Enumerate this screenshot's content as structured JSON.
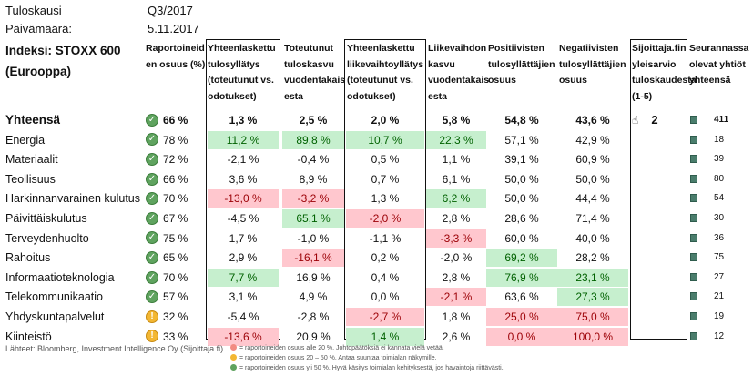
{
  "meta": {
    "period_label": "Tuloskausi",
    "period_value": "Q3/2017",
    "date_label": "Päivämäärä:",
    "date_value": "5.11.2017",
    "index_title": "Indeksi: STOXX 600 (Eurooppa)"
  },
  "headers": {
    "reported": "Raportoineid\nen osuus (%)",
    "eps_surprise": "Yhteenlaskettu\ntulosyllätys\n(toteutunut vs.\nodotukset)",
    "eps_growth": "Toteutunut\ntuloskasvu\nvuodentakais\nesta",
    "rev_surprise": "Yhteenlaskettu\nliikevaihtoyllätys\n(toteutunut vs.\nodotukset)",
    "rev_growth": "Liikevaihdon\nkasvu\nvuodentakais\nesta",
    "positive": "Positiivisten\ntulosyllättäjien\nosuus",
    "negative": "Negatiivisten\ntulosyllättäjien\nosuus",
    "rating": "Sijoittaja.fin\nyleisarvio\ntuloskaudesta\n(1-5)",
    "followed": "Seurannassa\nolevat yhtiöt\nyhteensä"
  },
  "colors": {
    "green_bg": "#c6efce",
    "red_bg": "#ffc7ce",
    "status_ok": "#5fa35f",
    "status_warn": "#f3b733",
    "square": "#4a7d6c"
  },
  "rows": [
    {
      "label": "Yhteensä",
      "status": "ok",
      "reported": "66 %",
      "eps_surprise": "1,3 %",
      "eps_growth": "2,5 %",
      "rev_surprise": "2,0 %",
      "rev_growth": "5,8 %",
      "positive": "54,8 %",
      "negative": "43,6 %",
      "rating": "2",
      "followed": "411"
    },
    {
      "label": "Energia",
      "status": "ok",
      "reported": "78 %",
      "eps_surprise": "11,2 %",
      "eps_growth": "89,8 %",
      "rev_surprise": "10,7 %",
      "rev_growth": "22,3 %",
      "positive": "57,1 %",
      "negative": "42,9 %",
      "followed": "18"
    },
    {
      "label": "Materiaalit",
      "status": "ok",
      "reported": "72 %",
      "eps_surprise": "-2,1 %",
      "eps_growth": "-0,4 %",
      "rev_surprise": "0,5 %",
      "rev_growth": "1,1 %",
      "positive": "39,1 %",
      "negative": "60,9 %",
      "followed": "39"
    },
    {
      "label": "Teollisuus",
      "status": "ok",
      "reported": "66 %",
      "eps_surprise": "3,6 %",
      "eps_growth": "8,9 %",
      "rev_surprise": "0,7 %",
      "rev_growth": "6,1 %",
      "positive": "50,0 %",
      "negative": "50,0 %",
      "followed": "80"
    },
    {
      "label": "Harkinnanvarainen kulutus",
      "status": "ok",
      "reported": "70 %",
      "eps_surprise": "-13,0 %",
      "eps_growth": "-3,2 %",
      "rev_surprise": "1,3 %",
      "rev_growth": "6,2 %",
      "positive": "50,0 %",
      "negative": "44,4 %",
      "followed": "54"
    },
    {
      "label": "Päivittäiskulutus",
      "status": "ok",
      "reported": "67 %",
      "eps_surprise": "-4,5 %",
      "eps_growth": "65,1 %",
      "rev_surprise": "-2,0 %",
      "rev_growth": "2,8 %",
      "positive": "28,6 %",
      "negative": "71,4 %",
      "followed": "30"
    },
    {
      "label": "Terveydenhuolto",
      "status": "ok",
      "reported": "75 %",
      "eps_surprise": "1,7 %",
      "eps_growth": "-1,0 %",
      "rev_surprise": "-1,1 %",
      "rev_growth": "-3,3 %",
      "positive": "60,0 %",
      "negative": "40,0 %",
      "followed": "36"
    },
    {
      "label": "Rahoitus",
      "status": "ok",
      "reported": "65 %",
      "eps_surprise": "2,9 %",
      "eps_growth": "-16,1 %",
      "rev_surprise": "0,2 %",
      "rev_growth": "-2,0 %",
      "positive": "69,2 %",
      "negative": "28,2 %",
      "followed": "75"
    },
    {
      "label": "Informaatioteknologia",
      "status": "ok",
      "reported": "70 %",
      "eps_surprise": "7,7 %",
      "eps_growth": "16,9 %",
      "rev_surprise": "0,4 %",
      "rev_growth": "2,8 %",
      "positive": "76,9 %",
      "negative": "23,1 %",
      "followed": "27"
    },
    {
      "label": "Telekommunikaatio",
      "status": "ok",
      "reported": "57 %",
      "eps_surprise": "3,1 %",
      "eps_growth": "4,9 %",
      "rev_surprise": "0,0 %",
      "rev_growth": "-2,1 %",
      "positive": "63,6 %",
      "negative": "27,3 %",
      "followed": "21"
    },
    {
      "label": "Yhdyskuntapalvelut",
      "status": "warn",
      "reported": "32 %",
      "eps_surprise": "-5,4 %",
      "eps_growth": "-2,8 %",
      "rev_surprise": "-2,7 %",
      "rev_growth": "1,8 %",
      "positive": "25,0 %",
      "negative": "75,0 %",
      "followed": "19"
    },
    {
      "label": "Kiinteistö",
      "status": "warn",
      "reported": "33 %",
      "eps_surprise": "-13,6 %",
      "eps_growth": "20,9 %",
      "rev_surprise": "1,4 %",
      "rev_growth": "2,6 %",
      "positive": "0,0 %",
      "negative": "100,0 %",
      "followed": "12"
    }
  ],
  "highlights": {
    "eps_surprise": {
      "1": "g",
      "4": "r",
      "8": "g",
      "11": "r"
    },
    "eps_growth": {
      "1": "g",
      "4": "r",
      "5": "g",
      "7": "r"
    },
    "rev_surprise": {
      "1": "g",
      "5": "r",
      "10": "r",
      "11": "g"
    },
    "rev_growth": {
      "1": "g",
      "4": "g",
      "6": "r",
      "9": "r"
    },
    "positive": {
      "7": "g",
      "8": "g",
      "10": "r",
      "11": "r"
    },
    "negative": {
      "8": "g",
      "9": "g",
      "10": "r",
      "11": "r"
    }
  },
  "footer": {
    "source": "Lähteet: Bloomberg, Investment Intelligence Oy (Sijoittaja.fi)",
    "legend": [
      {
        "color": "red",
        "text": "= raportoineiden osuus alle 20 %. Johtopäätöksiä ei kannata vielä vetää."
      },
      {
        "color": "orange",
        "text": "= raportoineiden osuus 20 – 50 %. Antaa suuntaa toimialan näkymille."
      },
      {
        "color": "green",
        "text": "= raportoineiden osuus yli 50 %. Hyvä käsitys toimialan kehityksestä, jos havaintoja riittävästi."
      }
    ]
  }
}
